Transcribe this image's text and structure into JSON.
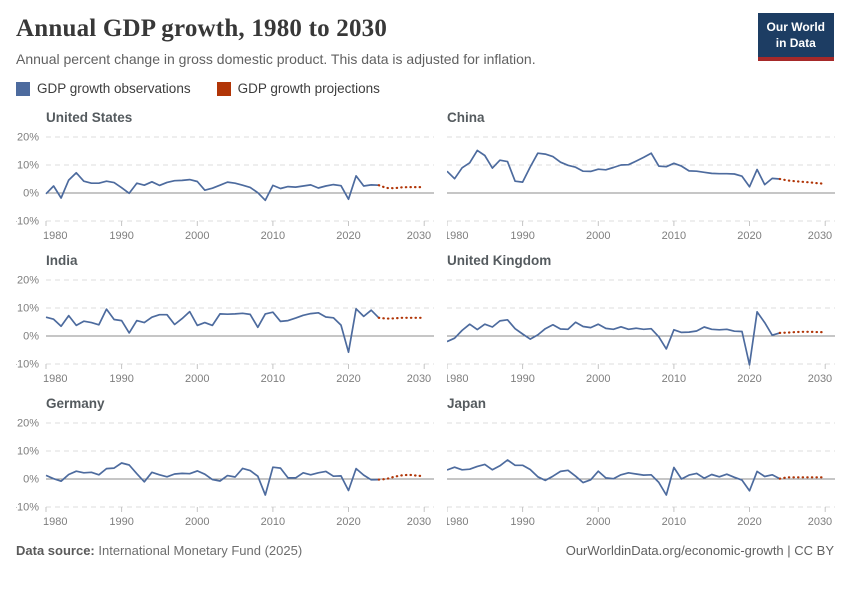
{
  "header": {
    "title": "Annual GDP growth, 1980 to 2030",
    "subtitle": "Annual percent change in gross domestic product. This data is adjusted for inflation.",
    "logo_line1": "Our World",
    "logo_line2": "in Data"
  },
  "legend": {
    "items": [
      {
        "label": "GDP growth observations",
        "color": "#4d6b9e"
      },
      {
        "label": "GDP growth projections",
        "color": "#b13507"
      }
    ]
  },
  "colors": {
    "observation": "#4d6b9e",
    "projection": "#b13507",
    "gridline": "#dcdcdc",
    "zero_line": "#8c8c8c",
    "tick": "#c4c4c4",
    "axis_label": "#7e7e7e",
    "logo_bg": "#1d3d63",
    "logo_stripe": "#a62929"
  },
  "chart_axis": {
    "xlim": [
      1980,
      2031.3
    ],
    "ylim": [
      -13,
      23
    ],
    "xticks": [
      1980,
      1990,
      2000,
      2010,
      2020,
      2030
    ],
    "yticks": [
      {
        "value": 20,
        "label": "20%"
      },
      {
        "value": 10,
        "label": "10%"
      },
      {
        "value": 0,
        "label": "0%"
      },
      {
        "value": -10,
        "label": "-10%"
      }
    ],
    "grid": "dashed",
    "legend_position": "top"
  },
  "chart_data": [
    {
      "type": "line",
      "title": "United States",
      "x_start": 1980,
      "show_y_labels": true,
      "observations": [
        -0.3,
        2.5,
        -1.8,
        4.6,
        7.2,
        4.2,
        3.5,
        3.5,
        4.2,
        3.7,
        1.9,
        -0.1,
        3.5,
        2.8,
        4.0,
        2.7,
        3.8,
        4.4,
        4.5,
        4.8,
        4.1,
        1.0,
        1.7,
        2.8,
        3.9,
        3.5,
        2.8,
        2.0,
        0.1,
        -2.6,
        2.7,
        1.6,
        2.3,
        2.1,
        2.5,
        2.9,
        1.8,
        2.5,
        3.0,
        2.6,
        -2.2,
        6.1,
        2.5,
        2.9,
        2.8
      ],
      "projection_x_start": 2024,
      "projections": [
        2.8,
        1.8,
        1.7,
        2.0,
        2.1,
        2.1,
        2.1
      ]
    },
    {
      "type": "line",
      "title": "China",
      "x_start": 1980,
      "show_y_labels": false,
      "observations": [
        7.8,
        5.1,
        9.0,
        10.8,
        15.2,
        13.4,
        8.9,
        11.7,
        11.2,
        4.2,
        3.9,
        9.3,
        14.2,
        13.9,
        13.0,
        11.0,
        9.9,
        9.2,
        7.8,
        7.7,
        8.5,
        8.3,
        9.1,
        10.0,
        10.1,
        11.4,
        12.7,
        14.2,
        9.6,
        9.4,
        10.6,
        9.6,
        7.9,
        7.8,
        7.4,
        7.0,
        6.9,
        6.9,
        6.8,
        6.0,
        2.2,
        8.4,
        3.0,
        5.2,
        5.0
      ],
      "projection_x_start": 2024,
      "projections": [
        5.0,
        4.5,
        4.2,
        4.0,
        3.8,
        3.5,
        3.3
      ]
    },
    {
      "type": "line",
      "title": "India",
      "x_start": 1980,
      "show_y_labels": true,
      "observations": [
        6.7,
        6.0,
        3.5,
        7.3,
        3.8,
        5.3,
        4.8,
        4.0,
        9.6,
        5.9,
        5.5,
        1.1,
        5.5,
        4.8,
        6.7,
        7.6,
        7.6,
        4.1,
        6.2,
        8.7,
        3.8,
        4.8,
        3.8,
        7.9,
        7.8,
        7.9,
        8.1,
        7.7,
        3.1,
        7.9,
        8.5,
        5.2,
        5.5,
        6.4,
        7.4,
        8.0,
        8.3,
        6.8,
        6.5,
        3.9,
        -5.8,
        9.7,
        7.0,
        9.2,
        6.5
      ],
      "projection_x_start": 2024,
      "projections": [
        6.5,
        6.2,
        6.3,
        6.5,
        6.5,
        6.5,
        6.5
      ]
    },
    {
      "type": "line",
      "title": "United Kingdom",
      "x_start": 1980,
      "show_y_labels": false,
      "observations": [
        -2.0,
        -0.8,
        2.0,
        4.2,
        2.3,
        4.2,
        3.2,
        5.4,
        5.8,
        2.6,
        0.7,
        -1.1,
        0.4,
        2.6,
        4.0,
        2.5,
        2.4,
        4.9,
        3.4,
        3.0,
        4.2,
        2.7,
        2.4,
        3.3,
        2.4,
        2.8,
        2.4,
        2.6,
        -0.3,
        -4.6,
        2.2,
        1.3,
        1.4,
        1.8,
        3.2,
        2.4,
        2.2,
        2.4,
        1.7,
        1.6,
        -10.3,
        8.6,
        4.8,
        0.3,
        1.1
      ],
      "projection_x_start": 2024,
      "projections": [
        1.1,
        1.2,
        1.4,
        1.5,
        1.5,
        1.4,
        1.4
      ]
    },
    {
      "type": "line",
      "title": "Germany",
      "x_start": 1980,
      "show_y_labels": true,
      "observations": [
        1.3,
        0.1,
        -0.8,
        1.6,
        2.8,
        2.2,
        2.4,
        1.5,
        3.7,
        3.9,
        5.7,
        5.0,
        1.9,
        -1.0,
        2.4,
        1.5,
        0.8,
        1.8,
        2.0,
        1.9,
        2.9,
        1.7,
        -0.2,
        -0.7,
        1.2,
        0.7,
        3.8,
        3.0,
        1.0,
        -5.7,
        4.2,
        3.9,
        0.4,
        0.4,
        2.2,
        1.5,
        2.2,
        2.7,
        1.0,
        1.1,
        -4.1,
        3.7,
        1.4,
        -0.3,
        -0.2
      ],
      "projection_x_start": 2024,
      "projections": [
        -0.2,
        0.0,
        0.8,
        1.3,
        1.5,
        1.2,
        1.0
      ]
    },
    {
      "type": "line",
      "title": "Japan",
      "x_start": 1980,
      "show_y_labels": false,
      "observations": [
        3.2,
        4.2,
        3.3,
        3.5,
        4.5,
        5.2,
        3.3,
        4.7,
        6.8,
        4.9,
        4.9,
        3.4,
        0.8,
        -0.5,
        1.0,
        2.7,
        3.1,
        1.0,
        -1.3,
        -0.3,
        2.8,
        0.4,
        0.1,
        1.5,
        2.2,
        1.8,
        1.4,
        1.5,
        -1.2,
        -5.7,
        4.1,
        0.0,
        1.4,
        2.0,
        0.3,
        1.6,
        0.8,
        1.7,
        0.6,
        -0.4,
        -4.2,
        2.7,
        0.9,
        1.5,
        0.1
      ],
      "projection_x_start": 2024,
      "projections": [
        0.1,
        0.6,
        0.6,
        0.6,
        0.6,
        0.6,
        0.6
      ]
    }
  ],
  "footer": {
    "source_label": "Data source:",
    "source_text": "International Monetary Fund (2025)",
    "credit": "OurWorldinData.org/economic-growth | CC BY"
  }
}
